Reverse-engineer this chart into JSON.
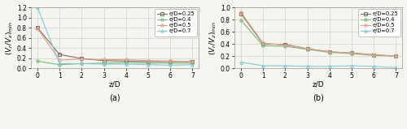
{
  "subplot_a": {
    "title": "(a)",
    "ylabel": "$(V_r/V_z)_{min}$",
    "xlabel": "z/D",
    "ylim": [
      0,
      1.2
    ],
    "yticks": [
      0.0,
      0.2,
      0.4,
      0.6,
      0.8,
      1.0,
      1.2
    ],
    "xticks": [
      0,
      1,
      2,
      3,
      4,
      5,
      6,
      7
    ],
    "series": [
      {
        "label": "e/D=0.25",
        "x": [
          0,
          1,
          2,
          3,
          4,
          5,
          6,
          7
        ],
        "y": [
          0.8,
          0.27,
          0.19,
          0.15,
          0.14,
          0.13,
          0.13,
          0.13
        ],
        "color": "#7a6a5a",
        "marker": "s",
        "linestyle": "-"
      },
      {
        "label": "e/D=0.4",
        "x": [
          0,
          1,
          2,
          3,
          4,
          5,
          6,
          7
        ],
        "y": [
          0.14,
          0.07,
          0.09,
          0.1,
          0.11,
          0.1,
          0.1,
          0.1
        ],
        "color": "#7ab87a",
        "marker": "o",
        "linestyle": "-"
      },
      {
        "label": "e/D=0.5",
        "x": [
          0,
          1,
          2,
          3,
          4,
          5,
          6,
          7
        ],
        "y": [
          0.78,
          0.16,
          0.18,
          0.17,
          0.17,
          0.15,
          0.14,
          0.13
        ],
        "color": "#e0a090",
        "marker": "o",
        "linestyle": "-"
      },
      {
        "label": "e/D=0.7",
        "x": [
          0,
          1,
          2,
          3,
          4,
          5,
          6,
          7
        ],
        "y": [
          1.2,
          0.09,
          0.09,
          0.08,
          0.08,
          0.07,
          0.06,
          0.07
        ],
        "color": "#80c8d8",
        "marker": "^",
        "linestyle": "-"
      }
    ]
  },
  "subplot_b": {
    "title": "(b)",
    "ylabel": "$(V_r/V_z)_{min}$",
    "xlabel": "z/D",
    "ylim": [
      0,
      1.0
    ],
    "yticks": [
      0.0,
      0.2,
      0.4,
      0.6,
      0.8,
      1.0
    ],
    "xticks": [
      0,
      1,
      2,
      3,
      4,
      5,
      6,
      7
    ],
    "series": [
      {
        "label": "e/D=0.25",
        "x": [
          0,
          1,
          2,
          3,
          4,
          5,
          6,
          7
        ],
        "y": [
          0.9,
          0.4,
          0.39,
          0.32,
          0.27,
          0.25,
          0.22,
          0.2
        ],
        "color": "#7a6a5a",
        "marker": "s",
        "linestyle": "-"
      },
      {
        "label": "e/D=0.4",
        "x": [
          0,
          1,
          2,
          3,
          4,
          5,
          6,
          7
        ],
        "y": [
          0.79,
          0.37,
          0.36,
          0.31,
          0.26,
          0.24,
          0.21,
          0.2
        ],
        "color": "#7ab87a",
        "marker": "o",
        "linestyle": "-"
      },
      {
        "label": "e/D=0.5",
        "x": [
          0,
          1,
          2,
          3,
          4,
          5,
          6,
          7
        ],
        "y": [
          0.92,
          0.41,
          0.38,
          0.32,
          0.27,
          0.25,
          0.22,
          0.2
        ],
        "color": "#e0a090",
        "marker": "o",
        "linestyle": "-"
      },
      {
        "label": "e/D=0.7",
        "x": [
          0,
          1,
          2,
          3,
          4,
          5,
          6,
          7
        ],
        "y": [
          0.1,
          0.04,
          0.04,
          0.03,
          0.03,
          0.04,
          0.03,
          0.01
        ],
        "color": "#80c8d8",
        "marker": "^",
        "linestyle": "-"
      }
    ]
  },
  "figure": {
    "background_color": "#f5f5f0",
    "grid_color": "#d0d0c8",
    "tick_fontsize": 5.5,
    "label_fontsize": 6.5,
    "legend_fontsize": 4.8,
    "title_fontsize": 7,
    "linewidth": 0.8,
    "markersize": 2.5
  }
}
